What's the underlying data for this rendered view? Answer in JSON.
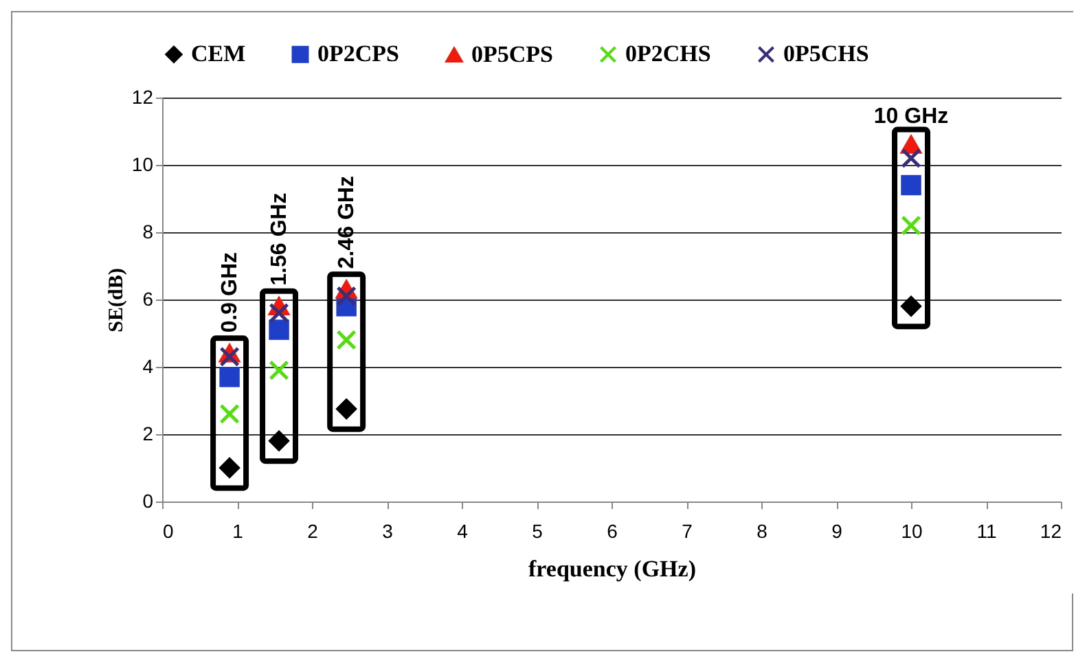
{
  "chart_data": {
    "type": "scatter",
    "xlabel": "frequency (GHz)",
    "ylabel": "SE(dB)",
    "x": [
      0.9,
      1.56,
      2.46,
      10
    ],
    "series": [
      {
        "name": "CEM",
        "color": "#000000",
        "marker": "diamond",
        "values": [
          1.0,
          1.8,
          2.75,
          5.8
        ]
      },
      {
        "name": "0P2CPS",
        "color": "#1f3fc8",
        "marker": "square",
        "values": [
          3.7,
          5.1,
          5.8,
          9.4
        ]
      },
      {
        "name": "0P5CPS",
        "color": "#ee1c0c",
        "marker": "triangle",
        "values": [
          4.4,
          5.8,
          6.3,
          10.6
        ]
      },
      {
        "name": "0P2CHS",
        "color": "#55dd11",
        "marker": "cross",
        "values": [
          2.6,
          3.9,
          4.8,
          8.2
        ]
      },
      {
        "name": "0P5CHS",
        "color": "#3b2d7a",
        "marker": "cross",
        "values": [
          4.3,
          5.6,
          6.1,
          10.2
        ]
      }
    ],
    "annotations": [
      "0.9 GHz",
      "1.56 GHz",
      "2.46 GHz",
      "10 GHz"
    ],
    "xlim": [
      0,
      12
    ],
    "xticks": [
      0,
      1,
      2,
      3,
      4,
      5,
      6,
      7,
      8,
      9,
      10,
      11,
      12
    ],
    "ylim": [
      0,
      12
    ],
    "yticks": [
      0,
      2,
      4,
      6,
      8,
      10,
      12
    ],
    "grid": "y",
    "legend": "top"
  }
}
